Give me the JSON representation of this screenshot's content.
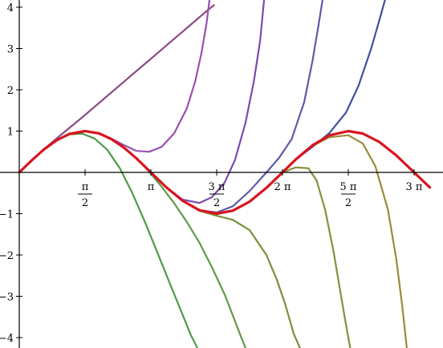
{
  "chart_data": {
    "type": "line",
    "title": "",
    "xlabel": "",
    "ylabel": "",
    "xlim": [
      0,
      9.8
    ],
    "ylim": [
      -4.2,
      4.2
    ],
    "grid": false,
    "legend": "none",
    "x_ticks": [
      {
        "value": 1.5708,
        "num": "π",
        "den": "2"
      },
      {
        "value": 3.1416,
        "num": "π",
        "den": ""
      },
      {
        "value": 4.7124,
        "num": "3 π",
        "den": "2"
      },
      {
        "value": 6.2832,
        "num": "2 π",
        "den": ""
      },
      {
        "value": 7.854,
        "num": "5 π",
        "den": "2"
      },
      {
        "value": 9.4248,
        "num": "3 π",
        "den": ""
      }
    ],
    "y_ticks": [
      {
        "value": -4,
        "label": "−4"
      },
      {
        "value": -3,
        "label": "−3"
      },
      {
        "value": -2,
        "label": "−2"
      },
      {
        "value": -1,
        "label": "−1"
      },
      {
        "value": 1,
        "label": "1"
      },
      {
        "value": 2,
        "label": "2"
      },
      {
        "value": 3,
        "label": "3"
      },
      {
        "value": 4,
        "label": "4"
      }
    ],
    "series": [
      {
        "color": "#d7141e",
        "width": 3.2,
        "x": [
          0,
          0.3,
          0.6,
          0.9,
          1.2,
          1.5708,
          1.9,
          2.2,
          2.5,
          2.8,
          3.1416,
          3.5,
          3.9,
          4.3,
          4.7124,
          5.1,
          5.5,
          5.9,
          6.2832,
          6.6,
          7.0,
          7.4,
          7.854,
          8.2,
          8.6,
          9.0,
          9.4248,
          9.8
        ],
        "y": [
          0,
          0.296,
          0.565,
          0.783,
          0.932,
          1.0,
          0.946,
          0.808,
          0.598,
          0.335,
          0.0,
          -0.351,
          -0.688,
          -0.916,
          -1.0,
          -0.926,
          -0.706,
          -0.374,
          0.0,
          0.312,
          0.657,
          0.898,
          1.0,
          0.941,
          0.734,
          0.412,
          0.0,
          -0.366
        ]
      },
      {
        "color": "#8b4a84",
        "width": 2.2,
        "x": [
          0,
          0.3,
          0.6,
          0.9,
          1.2,
          1.5,
          1.8,
          2.1,
          2.4,
          2.7,
          3.0,
          3.3,
          3.6,
          3.9,
          4.2,
          4.5,
          4.65
        ],
        "y": [
          0,
          0.296,
          0.57,
          0.83,
          1.08,
          1.33,
          1.59,
          1.85,
          2.11,
          2.37,
          2.63,
          2.89,
          3.15,
          3.41,
          3.67,
          3.93,
          4.05
        ]
      },
      {
        "color": "#9a4fb0",
        "width": 2.2,
        "x": [
          0,
          0.3,
          0.6,
          0.9,
          1.2,
          1.5708,
          1.9,
          2.2,
          2.5,
          2.8,
          3.1,
          3.4,
          3.7,
          4.0,
          4.2,
          4.35,
          4.47,
          4.55
        ],
        "y": [
          0,
          0.296,
          0.565,
          0.783,
          0.932,
          1.0,
          0.95,
          0.82,
          0.66,
          0.52,
          0.5,
          0.62,
          0.95,
          1.55,
          2.2,
          2.9,
          3.6,
          4.25
        ]
      },
      {
        "color": "#7b4aae",
        "width": 2.2,
        "x": [
          0,
          0.3,
          0.6,
          0.9,
          1.2,
          1.5708,
          1.9,
          2.2,
          2.5,
          2.8,
          3.1416,
          3.5,
          3.9,
          4.3,
          4.6,
          4.9,
          5.15,
          5.4,
          5.6,
          5.75,
          5.85
        ],
        "y": [
          0,
          0.296,
          0.565,
          0.783,
          0.932,
          1.0,
          0.946,
          0.808,
          0.598,
          0.335,
          0.0,
          -0.351,
          -0.66,
          -0.74,
          -0.6,
          -0.25,
          0.3,
          1.2,
          2.2,
          3.2,
          4.25
        ]
      },
      {
        "color": "#5f5aa8",
        "width": 2.2,
        "x": [
          0,
          0.3,
          0.6,
          0.9,
          1.2,
          1.5708,
          1.9,
          2.2,
          2.5,
          2.8,
          3.1416,
          3.5,
          3.9,
          4.3,
          4.7124,
          5.1,
          5.5,
          5.9,
          6.2,
          6.5,
          6.8,
          7.0,
          7.15,
          7.25
        ],
        "y": [
          0,
          0.296,
          0.565,
          0.783,
          0.932,
          1.0,
          0.946,
          0.808,
          0.598,
          0.335,
          0.0,
          -0.351,
          -0.688,
          -0.916,
          -0.97,
          -0.82,
          -0.45,
          0.0,
          0.35,
          0.8,
          1.7,
          2.7,
          3.6,
          4.25
        ]
      },
      {
        "color": "#3f4f9e",
        "width": 2.2,
        "x": [
          0,
          0.3,
          0.6,
          0.9,
          1.2,
          1.5708,
          1.9,
          2.2,
          2.5,
          2.8,
          3.1416,
          3.5,
          3.9,
          4.3,
          4.7124,
          5.1,
          5.5,
          5.9,
          6.2832,
          6.6,
          7.0,
          7.4,
          7.8,
          8.1,
          8.4,
          8.6,
          8.75
        ],
        "y": [
          0,
          0.296,
          0.565,
          0.783,
          0.932,
          1.0,
          0.946,
          0.808,
          0.598,
          0.335,
          0.0,
          -0.351,
          -0.688,
          -0.916,
          -1.0,
          -0.926,
          -0.706,
          -0.374,
          0.0,
          0.31,
          0.62,
          0.95,
          1.45,
          2.1,
          3.0,
          3.7,
          4.25
        ]
      },
      {
        "color": "#4e9a4a",
        "width": 2.2,
        "x": [
          0,
          0.3,
          0.6,
          0.9,
          1.2,
          1.5,
          1.8,
          2.1,
          2.4,
          2.7,
          3.0,
          3.3,
          3.6,
          3.9,
          4.1,
          4.25
        ],
        "y": [
          0,
          0.296,
          0.565,
          0.783,
          0.92,
          0.94,
          0.82,
          0.55,
          0.1,
          -0.5,
          -1.2,
          -1.95,
          -2.7,
          -3.45,
          -3.95,
          -4.25
        ]
      },
      {
        "color": "#5f9a48",
        "width": 2.2,
        "x": [
          0,
          0.3,
          0.6,
          0.9,
          1.2,
          1.5708,
          1.9,
          2.2,
          2.5,
          2.8,
          3.1,
          3.4,
          3.7,
          4.0,
          4.3,
          4.6,
          4.9,
          5.15,
          5.3,
          5.4
        ],
        "y": [
          0,
          0.296,
          0.565,
          0.783,
          0.932,
          1.0,
          0.946,
          0.808,
          0.598,
          0.335,
          0.02,
          -0.35,
          -0.75,
          -1.2,
          -1.7,
          -2.3,
          -2.95,
          -3.6,
          -4.0,
          -4.25
        ]
      },
      {
        "color": "#76913e",
        "width": 2.2,
        "x": [
          0,
          0.3,
          0.6,
          0.9,
          1.2,
          1.5708,
          1.9,
          2.2,
          2.5,
          2.8,
          3.1416,
          3.5,
          3.9,
          4.3,
          4.7124,
          5.1,
          5.5,
          5.9,
          6.15,
          6.35,
          6.55,
          6.7
        ],
        "y": [
          0,
          0.296,
          0.565,
          0.783,
          0.932,
          1.0,
          0.946,
          0.808,
          0.598,
          0.335,
          0.0,
          -0.351,
          -0.688,
          -0.93,
          -1.05,
          -1.15,
          -1.4,
          -2.0,
          -2.6,
          -3.2,
          -3.9,
          -4.25
        ]
      },
      {
        "color": "#8b8e3c",
        "width": 2.2,
        "x": [
          0,
          0.3,
          0.6,
          0.9,
          1.2,
          1.5708,
          1.9,
          2.2,
          2.5,
          2.8,
          3.1416,
          3.5,
          3.9,
          4.3,
          4.7124,
          5.1,
          5.5,
          5.9,
          6.2832,
          6.6,
          6.9,
          7.1,
          7.3,
          7.5,
          7.65,
          7.8,
          7.9
        ],
        "y": [
          0,
          0.296,
          0.565,
          0.783,
          0.932,
          1.0,
          0.946,
          0.808,
          0.598,
          0.335,
          0.0,
          -0.351,
          -0.688,
          -0.916,
          -1.0,
          -0.926,
          -0.706,
          -0.374,
          0.0,
          0.12,
          0.1,
          -0.2,
          -0.9,
          -1.9,
          -2.8,
          -3.7,
          -4.25
        ]
      },
      {
        "color": "#9a8a3a",
        "width": 2.2,
        "x": [
          0,
          0.3,
          0.6,
          0.9,
          1.2,
          1.5708,
          1.9,
          2.2,
          2.5,
          2.8,
          3.1416,
          3.5,
          3.9,
          4.3,
          4.7124,
          5.1,
          5.5,
          5.9,
          6.2832,
          6.6,
          7.0,
          7.4,
          7.854,
          8.2,
          8.5,
          8.8,
          9.0,
          9.15,
          9.25
        ],
        "y": [
          0,
          0.296,
          0.565,
          0.783,
          0.932,
          1.0,
          0.946,
          0.808,
          0.598,
          0.335,
          0.0,
          -0.351,
          -0.688,
          -0.916,
          -1.0,
          -0.926,
          -0.706,
          -0.374,
          0.0,
          0.31,
          0.64,
          0.85,
          0.9,
          0.7,
          0.15,
          -0.9,
          -2.1,
          -3.3,
          -4.25
        ]
      }
    ]
  }
}
